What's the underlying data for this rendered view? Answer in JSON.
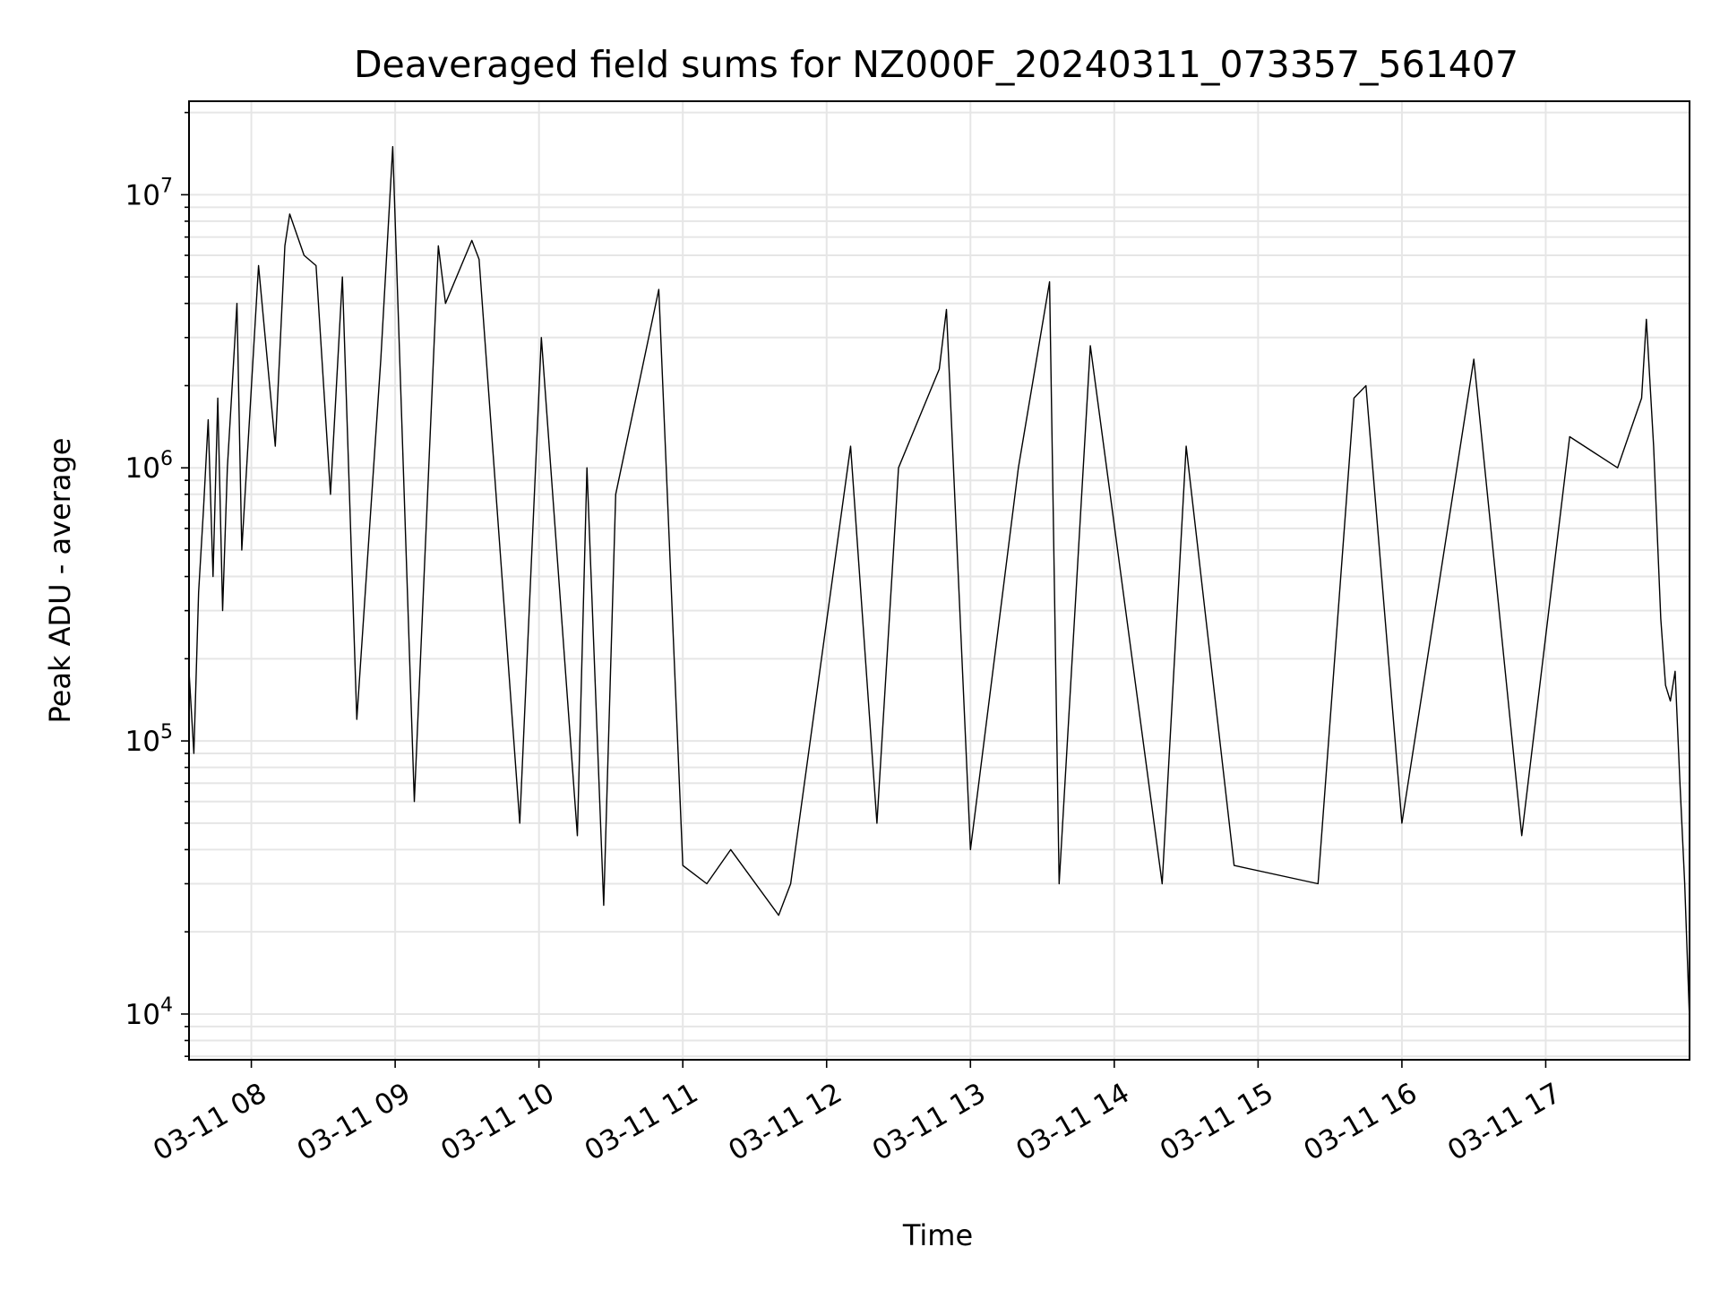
{
  "chart_data": {
    "type": "line",
    "title": "Deaveraged field sums for NZ000F_20240311_073357_561407",
    "xlabel": "Time",
    "ylabel": "Peak ADU - average",
    "yscale": "log",
    "ylim": [
      6800,
      22000000
    ],
    "xlim": [
      "2024-03-11 07:34",
      "2024-03-11 18:00"
    ],
    "grid": true,
    "x_tick_labels": [
      "03-11 08",
      "03-11 09",
      "03-11 10",
      "03-11 11",
      "03-11 12",
      "03-11 13",
      "03-11 14",
      "03-11 15",
      "03-11 16",
      "03-11 17"
    ],
    "x_tick_times": [
      "2024-03-11 08:00",
      "2024-03-11 09:00",
      "2024-03-11 10:00",
      "2024-03-11 11:00",
      "2024-03-11 12:00",
      "2024-03-11 13:00",
      "2024-03-11 14:00",
      "2024-03-11 15:00",
      "2024-03-11 16:00",
      "2024-03-11 17:00"
    ],
    "y_tick_values": [
      10000,
      100000,
      1000000,
      10000000
    ],
    "y_tick_labels": [
      {
        "base": "10",
        "exp": "4"
      },
      {
        "base": "10",
        "exp": "5"
      },
      {
        "base": "10",
        "exp": "6"
      },
      {
        "base": "10",
        "exp": "7"
      }
    ],
    "series": [
      {
        "color": "#000000",
        "x": [
          "2024-03-11 07:34",
          "2024-03-11 07:36",
          "2024-03-11 07:38",
          "2024-03-11 07:40",
          "2024-03-11 07:42",
          "2024-03-11 07:44",
          "2024-03-11 07:46",
          "2024-03-11 07:48",
          "2024-03-11 07:50",
          "2024-03-11 07:52",
          "2024-03-11 07:54",
          "2024-03-11 07:56",
          "2024-03-11 08:03",
          "2024-03-11 08:10",
          "2024-03-11 08:14",
          "2024-03-11 08:16",
          "2024-03-11 08:22",
          "2024-03-11 08:27",
          "2024-03-11 08:33",
          "2024-03-11 08:38",
          "2024-03-11 08:44",
          "2024-03-11 08:54",
          "2024-03-11 08:59",
          "2024-03-11 09:08",
          "2024-03-11 09:18",
          "2024-03-11 09:21",
          "2024-03-11 09:32",
          "2024-03-11 09:35",
          "2024-03-11 09:52",
          "2024-03-11 10:01",
          "2024-03-11 10:16",
          "2024-03-11 10:20",
          "2024-03-11 10:27",
          "2024-03-11 10:32",
          "2024-03-11 10:50",
          "2024-03-11 11:00",
          "2024-03-11 11:10",
          "2024-03-11 11:20",
          "2024-03-11 11:40",
          "2024-03-11 11:45",
          "2024-03-11 12:10",
          "2024-03-11 12:21",
          "2024-03-11 12:30",
          "2024-03-11 12:47",
          "2024-03-11 12:50",
          "2024-03-11 13:00",
          "2024-03-11 13:20",
          "2024-03-11 13:33",
          "2024-03-11 13:37",
          "2024-03-11 13:50",
          "2024-03-11 14:20",
          "2024-03-11 14:30",
          "2024-03-11 14:50",
          "2024-03-11 15:25",
          "2024-03-11 15:40",
          "2024-03-11 15:45",
          "2024-03-11 16:00",
          "2024-03-11 16:30",
          "2024-03-11 16:50",
          "2024-03-11 17:10",
          "2024-03-11 17:30",
          "2024-03-11 17:40",
          "2024-03-11 17:42",
          "2024-03-11 17:45",
          "2024-03-11 17:48",
          "2024-03-11 17:50",
          "2024-03-11 17:52",
          "2024-03-11 17:54",
          "2024-03-11 17:56",
          "2024-03-11 17:58",
          "2024-03-11 18:00"
        ],
        "y": [
          180000,
          90000,
          350000,
          700000,
          1500000,
          400000,
          1800000,
          300000,
          1000000,
          2000000,
          4000000,
          500000,
          5500000,
          1200000,
          6500000,
          8500000,
          6000000,
          5500000,
          800000,
          5000000,
          120000,
          2500000,
          15000000,
          60000,
          6500000,
          4000000,
          6800000,
          5800000,
          50000,
          3000000,
          45000,
          1000000,
          25000,
          800000,
          4500000,
          35000,
          30000,
          40000,
          23000,
          30000,
          1200000,
          50000,
          1000000,
          2300000,
          3800000,
          40000,
          1000000,
          4800000,
          30000,
          2800000,
          30000,
          1200000,
          35000,
          30000,
          1800000,
          2000000,
          50000,
          2500000,
          45000,
          1300000,
          1000000,
          1800000,
          3500000,
          1200000,
          280000,
          160000,
          140000,
          180000,
          70000,
          30000,
          9500
        ]
      }
    ]
  }
}
